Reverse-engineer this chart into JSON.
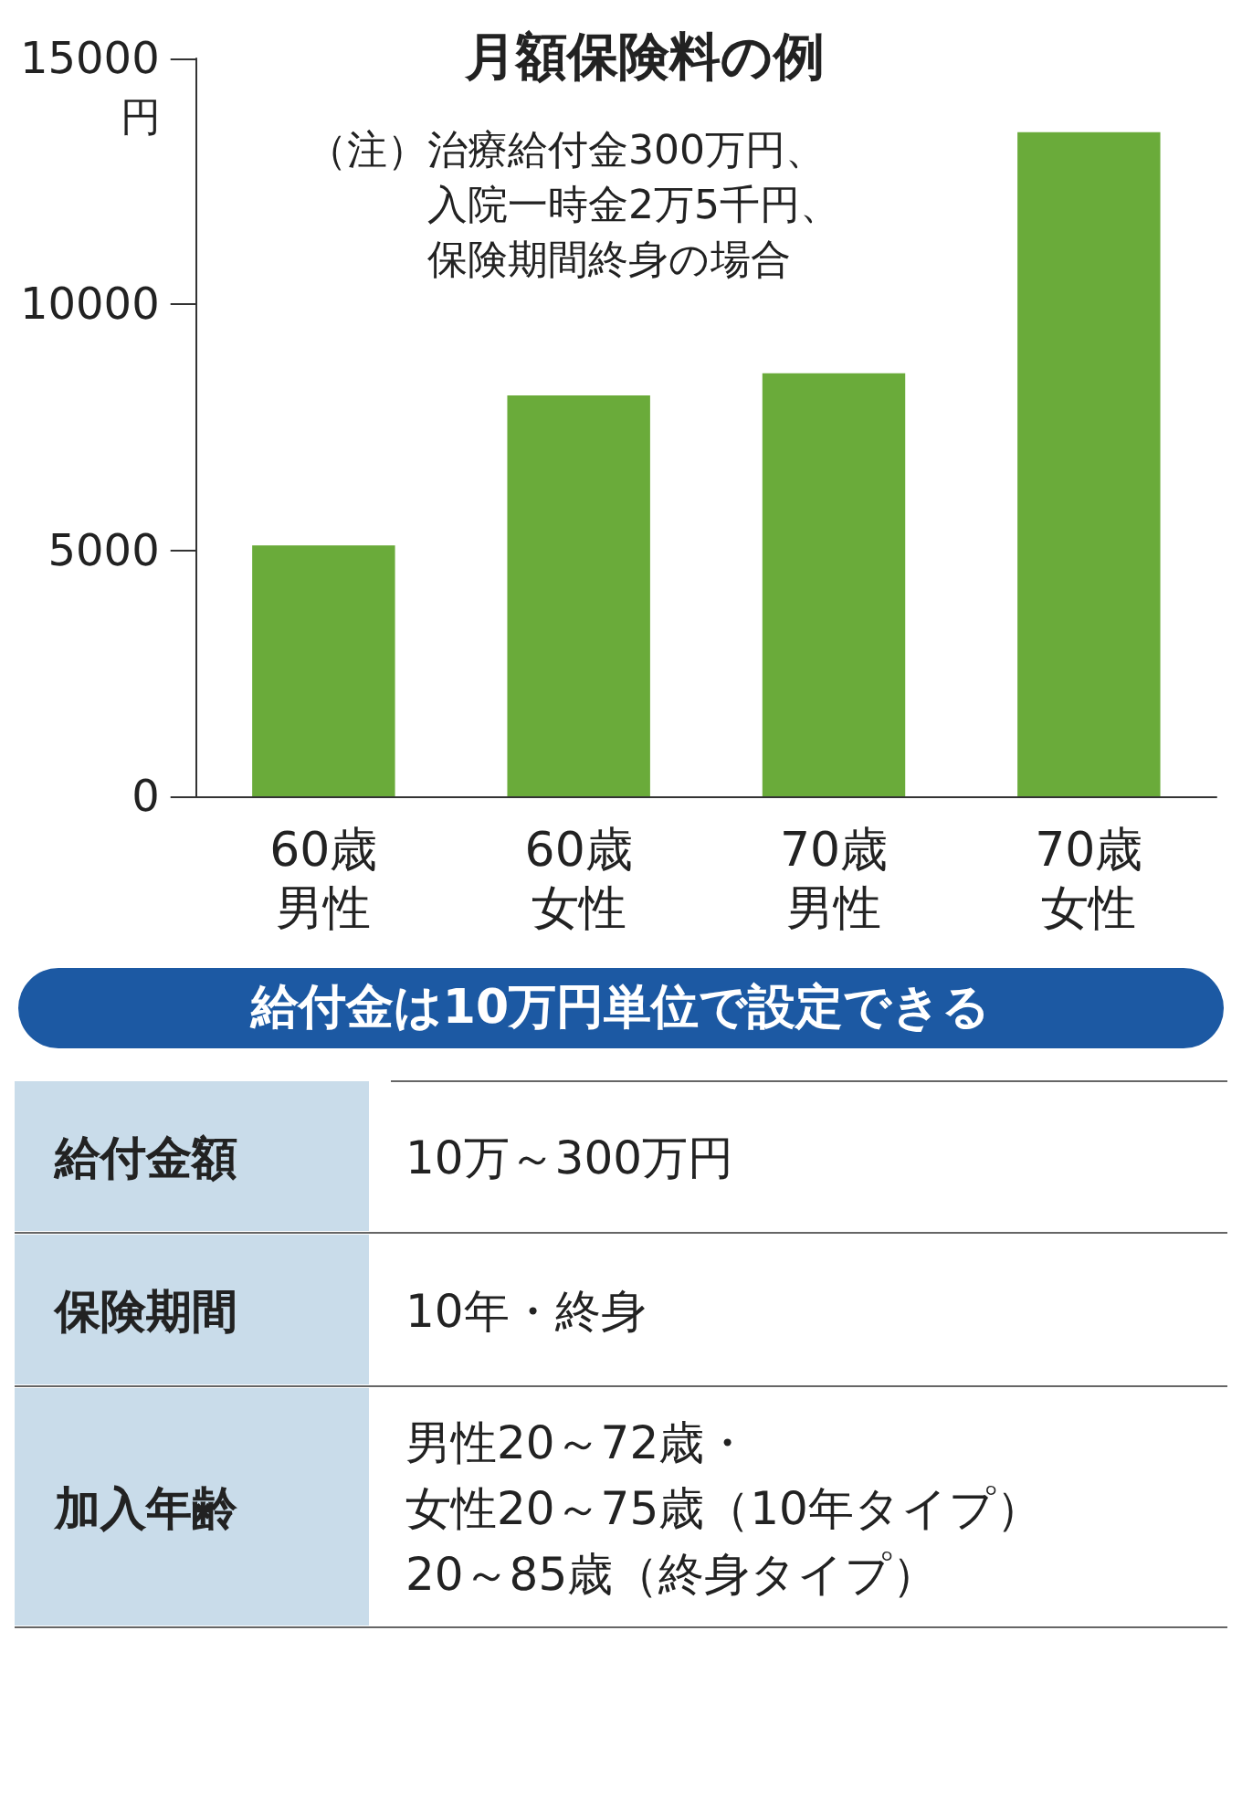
{
  "chart_data": [
    {
      "type": "bar",
      "title": "月額保険料の例",
      "ylabel": "円",
      "annotations": [
        "（注）治療給付金300万円、",
        "入院一時金2万5千円、",
        "保険期間終身の場合"
      ],
      "categories": [
        "60歳男性",
        "60歳女性",
        "70歳男性",
        "70歳女性"
      ],
      "values": [
        5100,
        8150,
        8600,
        13500
      ],
      "color": "#6aab3a",
      "ylim": [
        0,
        15000
      ],
      "yticks": [
        0,
        5000,
        10000,
        15000
      ]
    },
    {
      "type": "other",
      "title": "給付金は10万円単位で設定できる",
      "categories": [
        "給付金額",
        "保険期間",
        "加入年齢"
      ],
      "annotations": [
        "10万～300万円",
        "10年・終身",
        "男性20～72歳・",
        "女性20～75歳（10年タイプ）",
        "20～85歳（終身タイプ）"
      ]
    }
  ]
}
